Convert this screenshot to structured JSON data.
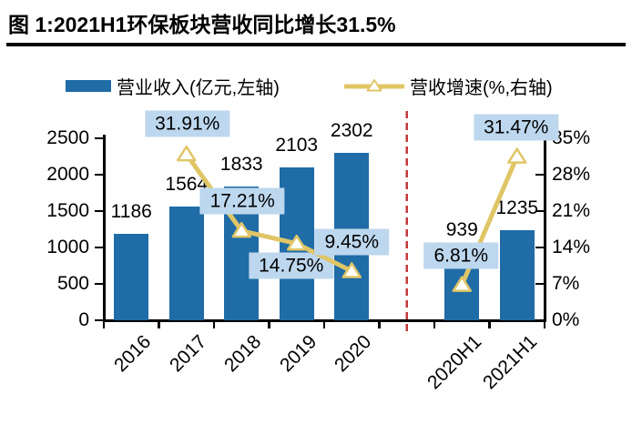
{
  "title": "图 1:2021H1环保板块营收同比增长31.5%",
  "legend": [
    {
      "label": "营业收入(亿元,左轴)",
      "swatch": "bar",
      "color": "#1F6CA7"
    },
    {
      "label": "营收增速(%,右轴)",
      "swatch": "line",
      "color": "#E0C566"
    }
  ],
  "colors": {
    "bar": "#1F6CA7",
    "line": "#E0C566",
    "marker_fill": "#FFFFFF",
    "label_box_bg": "#BDD7EE",
    "separator": "#C23A3C",
    "axis": "#000000",
    "text": "#000000"
  },
  "chart_data": {
    "type": "bar+line",
    "title": "2021H1环保板块营收同比增长31.5%",
    "categories": [
      "2016",
      "2017",
      "2018",
      "2019",
      "2020",
      "2020H1",
      "2021H1"
    ],
    "series": [
      {
        "name": "营业收入(亿元,左轴)",
        "type": "bar",
        "axis": "left",
        "values": [
          1186,
          1564,
          1833,
          2103,
          2302,
          939,
          1235
        ]
      },
      {
        "name": "营收增速(%,右轴)",
        "type": "line",
        "axis": "right",
        "values": [
          null,
          31.91,
          17.21,
          14.75,
          9.45,
          6.81,
          31.47
        ]
      }
    ],
    "left_axis": {
      "min": 0,
      "max": 2500,
      "ticks": [
        0,
        500,
        1000,
        1500,
        2000,
        2500
      ]
    },
    "right_axis": {
      "min": 0,
      "max": 35,
      "ticks": [
        "0%",
        "7%",
        "14%",
        "21%",
        "28%",
        "35%"
      ]
    },
    "separator": {
      "after_category": "2020",
      "style": "dashed"
    },
    "data_labels": {
      "bar": [
        "1186",
        "1564",
        "1833",
        "2103",
        "2302",
        "939",
        "1235"
      ],
      "line": [
        "31.91%",
        "17.21%",
        "14.75%",
        "9.45%",
        "6.81%",
        "31.47%"
      ]
    },
    "legend_position": "top",
    "grid": false
  }
}
